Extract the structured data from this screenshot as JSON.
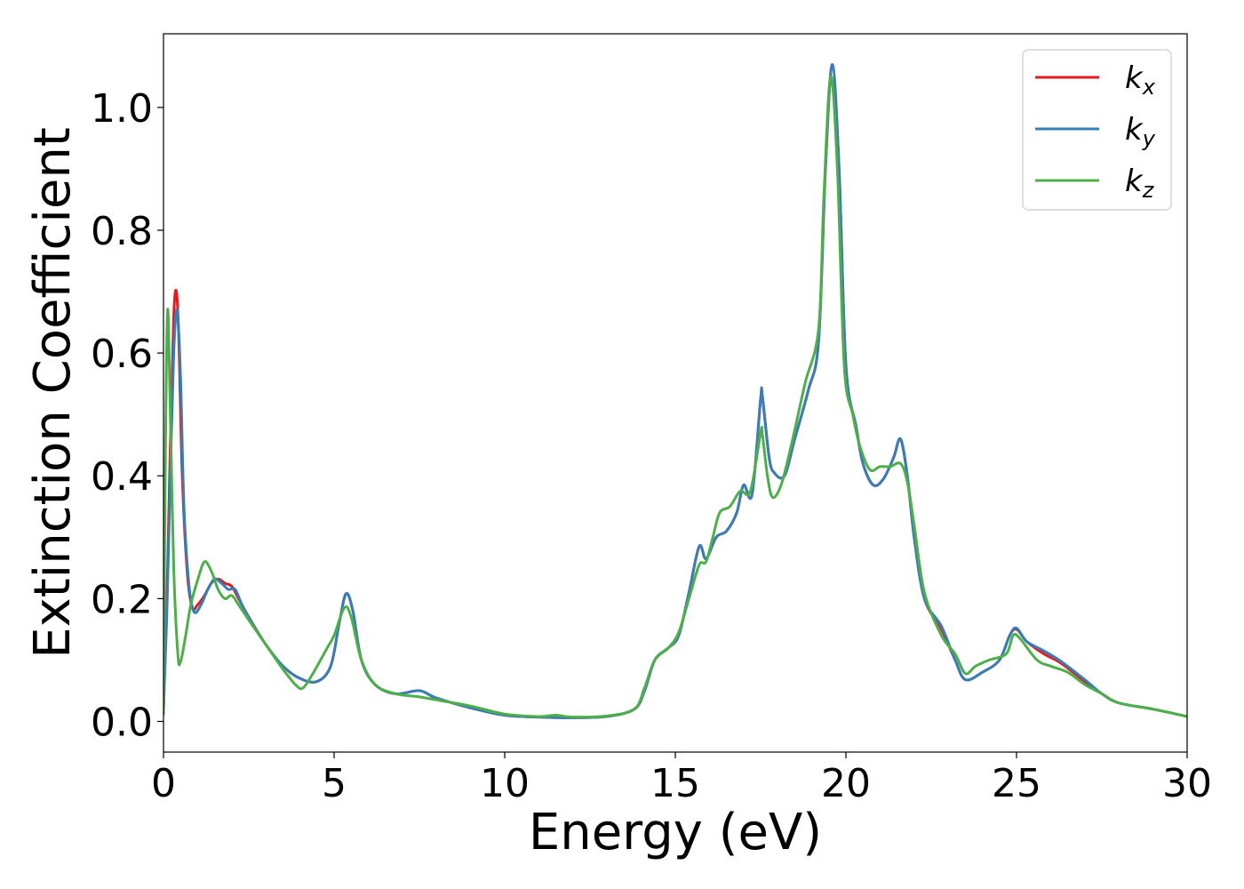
{
  "chart_data": {
    "type": "line",
    "title": "",
    "xlabel": "Energy (eV)",
    "ylabel": "Extinction Coefficient",
    "xlim": [
      0,
      30
    ],
    "ylim": [
      -0.05,
      1.12
    ],
    "xticks": [
      0,
      5,
      10,
      15,
      20,
      25,
      30
    ],
    "xtick_labels": [
      "0",
      "5",
      "10",
      "15",
      "20",
      "25",
      "30"
    ],
    "yticks": [
      0.0,
      0.2,
      0.4,
      0.6,
      0.8,
      1.0
    ],
    "ytick_labels": [
      "0.0",
      "0.2",
      "0.4",
      "0.6",
      "0.8",
      "1.0"
    ],
    "grid": false,
    "legend_position": "top-right",
    "legend": [
      {
        "base": "k",
        "sub": "x",
        "color": "#e41a1c"
      },
      {
        "base": "k",
        "sub": "y",
        "color": "#377eb8"
      },
      {
        "base": "k",
        "sub": "z",
        "color": "#4daf4a"
      }
    ],
    "series": [
      {
        "name": "kx",
        "color": "#e41a1c",
        "points": [
          [
            0,
            0.02
          ],
          [
            0.1,
            0.2
          ],
          [
            0.2,
            0.45
          ],
          [
            0.3,
            0.66
          ],
          [
            0.38,
            0.7
          ],
          [
            0.45,
            0.62
          ],
          [
            0.55,
            0.4
          ],
          [
            0.7,
            0.24
          ],
          [
            0.85,
            0.185
          ],
          [
            1.0,
            0.19
          ],
          [
            1.2,
            0.205
          ],
          [
            1.4,
            0.225
          ],
          [
            1.6,
            0.232
          ],
          [
            1.8,
            0.225
          ],
          [
            2.0,
            0.22
          ],
          [
            2.2,
            0.2
          ],
          [
            2.5,
            0.17
          ],
          [
            3.0,
            0.125
          ],
          [
            3.5,
            0.09
          ],
          [
            4.0,
            0.07
          ],
          [
            4.5,
            0.065
          ],
          [
            4.9,
            0.09
          ],
          [
            5.15,
            0.16
          ],
          [
            5.35,
            0.208
          ],
          [
            5.55,
            0.18
          ],
          [
            5.8,
            0.1
          ],
          [
            6.2,
            0.06
          ],
          [
            6.8,
            0.045
          ],
          [
            7.5,
            0.05
          ],
          [
            8.0,
            0.038
          ],
          [
            9.0,
            0.022
          ],
          [
            10,
            0.01
          ],
          [
            11,
            0.007
          ],
          [
            12,
            0.006
          ],
          [
            13,
            0.008
          ],
          [
            13.8,
            0.02
          ],
          [
            14.1,
            0.05
          ],
          [
            14.4,
            0.1
          ],
          [
            14.8,
            0.12
          ],
          [
            15.1,
            0.14
          ],
          [
            15.4,
            0.21
          ],
          [
            15.7,
            0.285
          ],
          [
            15.9,
            0.265
          ],
          [
            16.2,
            0.3
          ],
          [
            16.5,
            0.31
          ],
          [
            16.8,
            0.34
          ],
          [
            17.0,
            0.385
          ],
          [
            17.25,
            0.37
          ],
          [
            17.5,
            0.525
          ],
          [
            17.55,
            0.53
          ],
          [
            17.75,
            0.43
          ],
          [
            17.9,
            0.405
          ],
          [
            18.2,
            0.4
          ],
          [
            18.5,
            0.46
          ],
          [
            18.9,
            0.54
          ],
          [
            19.2,
            0.62
          ],
          [
            19.4,
            0.9
          ],
          [
            19.6,
            1.07
          ],
          [
            19.8,
            0.9
          ],
          [
            20.0,
            0.58
          ],
          [
            20.3,
            0.48
          ],
          [
            20.5,
            0.42
          ],
          [
            20.8,
            0.385
          ],
          [
            21.1,
            0.395
          ],
          [
            21.4,
            0.43
          ],
          [
            21.6,
            0.46
          ],
          [
            21.8,
            0.4
          ],
          [
            22.0,
            0.3
          ],
          [
            22.3,
            0.2
          ],
          [
            22.8,
            0.15
          ],
          [
            23.2,
            0.1
          ],
          [
            23.5,
            0.068
          ],
          [
            24.0,
            0.08
          ],
          [
            24.5,
            0.1
          ],
          [
            24.8,
            0.14
          ],
          [
            25.0,
            0.15
          ],
          [
            25.3,
            0.13
          ],
          [
            25.8,
            0.11
          ],
          [
            26.3,
            0.095
          ],
          [
            27,
            0.065
          ],
          [
            27.5,
            0.045
          ],
          [
            28,
            0.03
          ],
          [
            29,
            0.02
          ],
          [
            30,
            0.008
          ]
        ]
      },
      {
        "name": "ky",
        "color": "#377eb8",
        "points": [
          [
            0,
            0.02
          ],
          [
            0.1,
            0.18
          ],
          [
            0.2,
            0.4
          ],
          [
            0.3,
            0.6
          ],
          [
            0.4,
            0.67
          ],
          [
            0.5,
            0.56
          ],
          [
            0.6,
            0.35
          ],
          [
            0.75,
            0.22
          ],
          [
            0.9,
            0.178
          ],
          [
            1.1,
            0.19
          ],
          [
            1.3,
            0.215
          ],
          [
            1.5,
            0.232
          ],
          [
            1.7,
            0.225
          ],
          [
            1.9,
            0.215
          ],
          [
            2.1,
            0.215
          ],
          [
            2.3,
            0.19
          ],
          [
            2.6,
            0.16
          ],
          [
            3.0,
            0.125
          ],
          [
            3.5,
            0.09
          ],
          [
            4.0,
            0.07
          ],
          [
            4.5,
            0.065
          ],
          [
            4.9,
            0.09
          ],
          [
            5.15,
            0.16
          ],
          [
            5.35,
            0.208
          ],
          [
            5.55,
            0.18
          ],
          [
            5.8,
            0.1
          ],
          [
            6.2,
            0.06
          ],
          [
            6.8,
            0.045
          ],
          [
            7.5,
            0.05
          ],
          [
            8.0,
            0.038
          ],
          [
            9.0,
            0.022
          ],
          [
            10,
            0.01
          ],
          [
            11,
            0.007
          ],
          [
            12,
            0.006
          ],
          [
            13,
            0.008
          ],
          [
            13.8,
            0.02
          ],
          [
            14.1,
            0.05
          ],
          [
            14.4,
            0.1
          ],
          [
            14.8,
            0.12
          ],
          [
            15.1,
            0.14
          ],
          [
            15.4,
            0.21
          ],
          [
            15.7,
            0.285
          ],
          [
            15.9,
            0.265
          ],
          [
            16.2,
            0.3
          ],
          [
            16.5,
            0.31
          ],
          [
            16.8,
            0.34
          ],
          [
            17.0,
            0.385
          ],
          [
            17.25,
            0.37
          ],
          [
            17.5,
            0.525
          ],
          [
            17.55,
            0.53
          ],
          [
            17.75,
            0.43
          ],
          [
            17.9,
            0.405
          ],
          [
            18.2,
            0.4
          ],
          [
            18.5,
            0.46
          ],
          [
            18.9,
            0.54
          ],
          [
            19.2,
            0.62
          ],
          [
            19.4,
            0.9
          ],
          [
            19.6,
            1.07
          ],
          [
            19.8,
            0.9
          ],
          [
            20.0,
            0.58
          ],
          [
            20.3,
            0.48
          ],
          [
            20.5,
            0.42
          ],
          [
            20.8,
            0.385
          ],
          [
            21.1,
            0.395
          ],
          [
            21.4,
            0.43
          ],
          [
            21.6,
            0.46
          ],
          [
            21.8,
            0.4
          ],
          [
            22.0,
            0.3
          ],
          [
            22.3,
            0.2
          ],
          [
            22.8,
            0.155
          ],
          [
            23.2,
            0.1
          ],
          [
            23.5,
            0.068
          ],
          [
            24.0,
            0.08
          ],
          [
            24.5,
            0.1
          ],
          [
            24.8,
            0.14
          ],
          [
            25.0,
            0.152
          ],
          [
            25.3,
            0.13
          ],
          [
            25.8,
            0.115
          ],
          [
            26.3,
            0.098
          ],
          [
            27,
            0.068
          ],
          [
            27.5,
            0.045
          ],
          [
            28,
            0.03
          ],
          [
            29,
            0.02
          ],
          [
            30,
            0.008
          ]
        ]
      },
      {
        "name": "kz",
        "color": "#4daf4a",
        "points": [
          [
            0,
            0.01
          ],
          [
            0.05,
            0.4
          ],
          [
            0.12,
            0.67
          ],
          [
            0.2,
            0.5
          ],
          [
            0.3,
            0.25
          ],
          [
            0.42,
            0.11
          ],
          [
            0.5,
            0.097
          ],
          [
            0.65,
            0.14
          ],
          [
            0.8,
            0.19
          ],
          [
            1.0,
            0.23
          ],
          [
            1.2,
            0.26
          ],
          [
            1.4,
            0.245
          ],
          [
            1.6,
            0.215
          ],
          [
            1.8,
            0.2
          ],
          [
            2.0,
            0.205
          ],
          [
            2.2,
            0.19
          ],
          [
            2.5,
            0.165
          ],
          [
            3.0,
            0.125
          ],
          [
            3.5,
            0.085
          ],
          [
            3.9,
            0.058
          ],
          [
            4.1,
            0.055
          ],
          [
            4.4,
            0.08
          ],
          [
            4.8,
            0.12
          ],
          [
            5.0,
            0.14
          ],
          [
            5.3,
            0.185
          ],
          [
            5.5,
            0.17
          ],
          [
            5.8,
            0.1
          ],
          [
            6.2,
            0.06
          ],
          [
            6.8,
            0.045
          ],
          [
            7.5,
            0.04
          ],
          [
            8.0,
            0.035
          ],
          [
            9.0,
            0.025
          ],
          [
            10,
            0.012
          ],
          [
            11,
            0.008
          ],
          [
            11.5,
            0.01
          ],
          [
            12,
            0.007
          ],
          [
            13,
            0.009
          ],
          [
            13.8,
            0.02
          ],
          [
            14.1,
            0.055
          ],
          [
            14.4,
            0.1
          ],
          [
            14.8,
            0.12
          ],
          [
            15.1,
            0.145
          ],
          [
            15.4,
            0.2
          ],
          [
            15.7,
            0.255
          ],
          [
            15.9,
            0.26
          ],
          [
            16.1,
            0.3
          ],
          [
            16.3,
            0.34
          ],
          [
            16.6,
            0.35
          ],
          [
            16.9,
            0.375
          ],
          [
            17.2,
            0.375
          ],
          [
            17.5,
            0.47
          ],
          [
            17.55,
            0.468
          ],
          [
            17.7,
            0.4
          ],
          [
            17.85,
            0.365
          ],
          [
            18.1,
            0.385
          ],
          [
            18.4,
            0.45
          ],
          [
            18.8,
            0.55
          ],
          [
            19.2,
            0.64
          ],
          [
            19.35,
            0.85
          ],
          [
            19.55,
            1.05
          ],
          [
            19.75,
            0.9
          ],
          [
            19.95,
            0.58
          ],
          [
            20.2,
            0.5
          ],
          [
            20.4,
            0.45
          ],
          [
            20.7,
            0.41
          ],
          [
            21.0,
            0.415
          ],
          [
            21.3,
            0.415
          ],
          [
            21.6,
            0.42
          ],
          [
            21.8,
            0.39
          ],
          [
            22.0,
            0.32
          ],
          [
            22.3,
            0.21
          ],
          [
            22.8,
            0.14
          ],
          [
            23.2,
            0.11
          ],
          [
            23.5,
            0.078
          ],
          [
            23.8,
            0.09
          ],
          [
            24.2,
            0.1
          ],
          [
            24.7,
            0.11
          ],
          [
            24.9,
            0.14
          ],
          [
            25.1,
            0.135
          ],
          [
            25.6,
            0.1
          ],
          [
            26.0,
            0.09
          ],
          [
            26.5,
            0.08
          ],
          [
            27,
            0.06
          ],
          [
            27.5,
            0.045
          ],
          [
            28,
            0.03
          ],
          [
            29,
            0.02
          ],
          [
            30,
            0.008
          ]
        ]
      }
    ]
  }
}
